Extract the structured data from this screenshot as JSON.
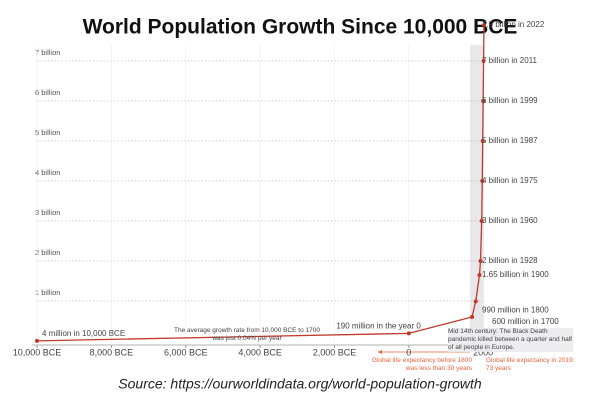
{
  "chart_data": {
    "type": "line",
    "title": "World Population Growth Since 10,000 BCE",
    "source": "Source: https://ourworldindata.org/world-population-growth",
    "x": [
      -10000,
      0,
      1700,
      1800,
      1900,
      1928,
      1960,
      1975,
      1987,
      1999,
      2011,
      2022
    ],
    "series": [
      {
        "color": "#c0392b",
        "values": [
          0.004,
          0.19,
          0.6,
          0.99,
          1.65,
          2,
          3,
          4,
          5,
          6,
          7,
          7.9
        ],
        "value_labels": [
          "4 million in 10,000 BCE",
          "190 million in the year 0",
          "600 million in 1700",
          "990 million in 1800",
          "1.65 billion in 1900",
          "2 billion in 1928",
          "3 billion in 1960",
          "4 billion in 1975",
          "5 billion in 1987",
          "6 billion in 1999",
          "7 billion in 2011",
          "7.9 billion in 2022"
        ]
      }
    ],
    "xlim": [
      -10000,
      2022
    ],
    "xticks": [
      {
        "value": -10000,
        "label": "10,000 BCE"
      },
      {
        "value": -8000,
        "label": "8,000 BCE"
      },
      {
        "value": -6000,
        "label": "6,000 BCE"
      },
      {
        "value": -4000,
        "label": "4,000 BCE"
      },
      {
        "value": -2000,
        "label": "2,000 BCE"
      },
      0,
      2000
    ],
    "ylim": [
      0,
      8
    ],
    "yticks": [
      {
        "value": 1,
        "label": "1 billion"
      },
      {
        "value": 2,
        "label": "2 billion"
      },
      {
        "value": 3,
        "label": "3 billion"
      },
      {
        "value": 4,
        "label": "4 billion"
      },
      {
        "value": 5,
        "label": "5 billion"
      },
      {
        "value": 6,
        "label": "6 billion"
      },
      {
        "value": 7,
        "label": "7 billion"
      }
    ],
    "grid": true,
    "annotations": [
      "The average growth rate from 10,000 BCE to 1700 was just 0.04% per year",
      "Mid 14th century: The Black Death pandemic killed between a quarter and half of all people in Europe.",
      "Global life expectancy before 1800 was less than 30 years",
      "Global life expectancy in 2019: 73 years"
    ]
  }
}
